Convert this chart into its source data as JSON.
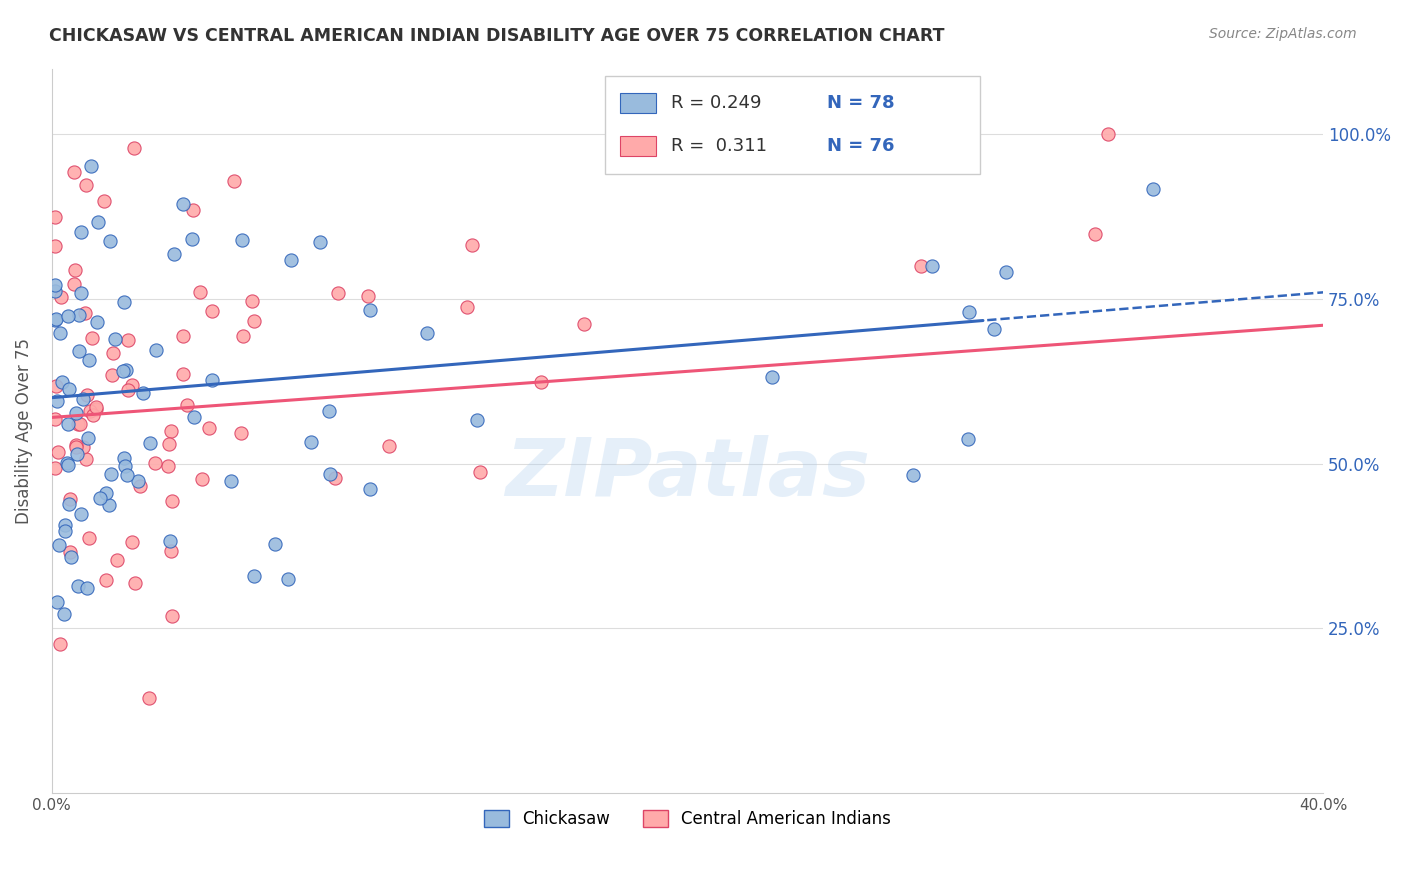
{
  "title": "CHICKASAW VS CENTRAL AMERICAN INDIAN DISABILITY AGE OVER 75 CORRELATION CHART",
  "source": "Source: ZipAtlas.com",
  "ylabel": "Disability Age Over 75",
  "watermark": "ZIPatlas",
  "chickasaw_color": "#99BBDD",
  "central_color": "#FFAAAA",
  "chickasaw_line_color": "#3366BB",
  "central_line_color": "#EE5577",
  "chickasaw_edge_color": "#3366BB",
  "central_edge_color": "#DD4466",
  "xlim": [
    0,
    40
  ],
  "ylim": [
    0,
    110
  ],
  "legend_text_color": "#3366BB",
  "legend_label_color": "#333333",
  "right_axis_color": "#3366BB",
  "title_color": "#333333",
  "grid_color": "#DDDDDD",
  "bg_color": "#FFFFFF"
}
